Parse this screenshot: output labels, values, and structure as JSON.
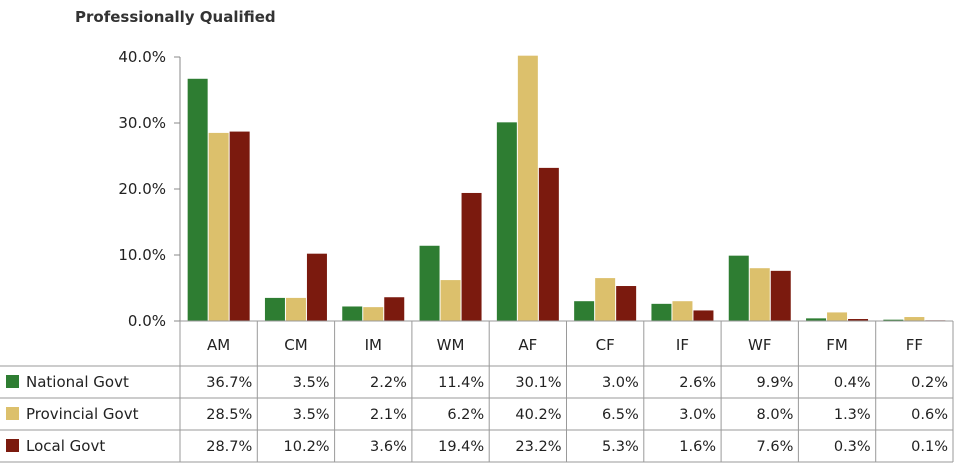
{
  "chart_data": {
    "type": "bar",
    "title": "Professionally Qualified",
    "categories": [
      "AM",
      "CM",
      "IM",
      "WM",
      "AF",
      "CF",
      "IF",
      "WF",
      "FM",
      "FF"
    ],
    "ylim": [
      0,
      40
    ],
    "yticks": [
      "0.0%",
      "10.0%",
      "20.0%",
      "30.0%",
      "40.0%"
    ],
    "ytick_values": [
      0,
      10,
      20,
      30,
      40
    ],
    "legend_placement": "left (data table)",
    "series": [
      {
        "name": "National Govt",
        "color": "#2e7d32",
        "values": [
          36.7,
          3.5,
          2.2,
          11.4,
          30.1,
          3.0,
          2.6,
          9.9,
          0.4,
          0.2
        ],
        "labels": [
          "36.7%",
          "3.5%",
          "2.2%",
          "11.4%",
          "30.1%",
          "3.0%",
          "2.6%",
          "9.9%",
          "0.4%",
          "0.2%"
        ]
      },
      {
        "name": "Provincial Govt",
        "color": "#dcc06c",
        "values": [
          28.5,
          3.5,
          2.1,
          6.2,
          40.2,
          6.5,
          3.0,
          8.0,
          1.3,
          0.6
        ],
        "labels": [
          "28.5%",
          "3.5%",
          "2.1%",
          "6.2%",
          "40.2%",
          "6.5%",
          "3.0%",
          "8.0%",
          "1.3%",
          "0.6%"
        ]
      },
      {
        "name": "Local Govt",
        "color": "#7b1a0e",
        "values": [
          28.7,
          10.2,
          3.6,
          19.4,
          23.2,
          5.3,
          1.6,
          7.6,
          0.3,
          0.1
        ],
        "labels": [
          "28.7%",
          "10.2%",
          "3.6%",
          "19.4%",
          "23.2%",
          "5.3%",
          "1.6%",
          "7.6%",
          "0.3%",
          "0.1%"
        ]
      }
    ]
  }
}
